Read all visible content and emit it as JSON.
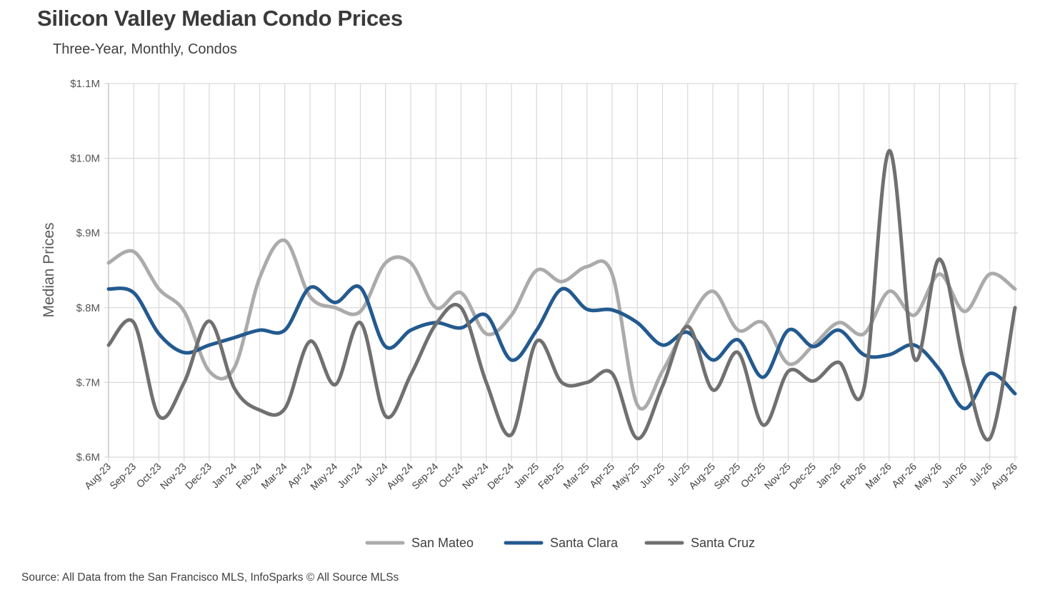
{
  "chart_data": {
    "type": "line",
    "title": "Silicon Valley Median Condo Prices",
    "subtitle": "Three-Year, Monthly, Condos",
    "ylabel": "Median Prices",
    "xlabel": "",
    "source": "Source: All Data from the San Francisco MLS, InfoSparks © All Source MLSs",
    "ylim": [
      600000,
      1100000
    ],
    "y_ticks": [
      {
        "value": 600000,
        "label": "$.6M"
      },
      {
        "value": 700000,
        "label": "$.7M"
      },
      {
        "value": 800000,
        "label": "$.8M"
      },
      {
        "value": 900000,
        "label": "$.9M"
      },
      {
        "value": 1000000,
        "label": "$1.0M"
      },
      {
        "value": 1100000,
        "label": "$1.1M"
      }
    ],
    "grid": true,
    "legend_position": "bottom",
    "categories": [
      "Aug-23",
      "Sep-23",
      "Oct-23",
      "Nov-23",
      "Dec-23",
      "Jan-24",
      "Feb-24",
      "Mar-24",
      "Apr-24",
      "May-24",
      "Jun-24",
      "Jul-24",
      "Aug-24",
      "Sep-24",
      "Oct-24",
      "Nov-24",
      "Dec-24",
      "Jan-25",
      "Feb-25",
      "Mar-25",
      "Apr-25",
      "May-25",
      "Jun-25",
      "Jul-25",
      "Aug-25",
      "Sep-25",
      "Oct-25",
      "Nov-25",
      "Dec-25",
      "Jan-26",
      "Feb-26",
      "Mar-26",
      "Apr-26",
      "May-26",
      "Jun-26",
      "Jul-26",
      "Aug-26"
    ],
    "series": [
      {
        "name": "San Mateo",
        "color": "#ababab",
        "values": [
          860000,
          875000,
          825000,
          795000,
          715000,
          720000,
          840000,
          890000,
          815000,
          800000,
          795000,
          860000,
          860000,
          800000,
          820000,
          765000,
          790000,
          850000,
          835000,
          855000,
          845000,
          670000,
          715000,
          780000,
          822000,
          770000,
          780000,
          725000,
          750000,
          780000,
          765000,
          822000,
          790000,
          845000,
          795000,
          845000,
          825000
        ]
      },
      {
        "name": "Santa Clara",
        "color": "#235a8f",
        "values": [
          825000,
          820000,
          765000,
          740000,
          750000,
          760000,
          770000,
          770000,
          827000,
          807000,
          827000,
          748000,
          770000,
          780000,
          773000,
          790000,
          730000,
          770000,
          825000,
          798000,
          797000,
          780000,
          750000,
          767000,
          730000,
          757000,
          707000,
          770000,
          748000,
          770000,
          737000,
          737000,
          750000,
          717000,
          665000,
          712000,
          685000
        ]
      },
      {
        "name": "Santa Cruz",
        "color": "#707070",
        "values": [
          750000,
          780000,
          655000,
          700000,
          782000,
          692000,
          663000,
          665000,
          755000,
          697000,
          780000,
          655000,
          710000,
          778000,
          800000,
          700000,
          630000,
          755000,
          700000,
          700000,
          712000,
          625000,
          695000,
          775000,
          690000,
          740000,
          643000,
          715000,
          702000,
          727000,
          692000,
          1010000,
          732000,
          865000,
          720000,
          625000,
          800000
        ]
      }
    ]
  }
}
